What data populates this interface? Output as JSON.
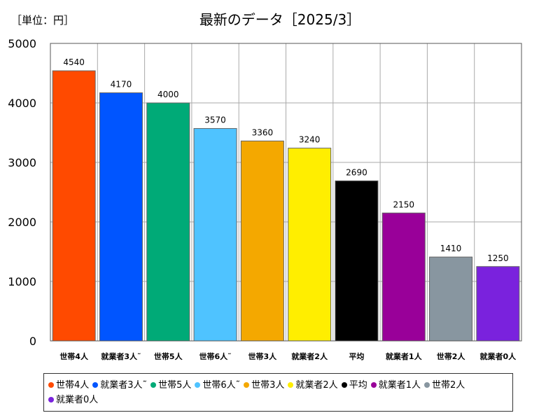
{
  "header": {
    "unit_label": "［単位：円］",
    "title": "最新のデータ［2025/3］"
  },
  "chart_data": {
    "type": "bar",
    "title": "最新のデータ［2025/3］",
    "unit": "［単位：円］",
    "ylim": [
      0,
      5000
    ],
    "yticks": [
      0,
      1000,
      2000,
      3000,
      4000,
      5000
    ],
    "grid": true,
    "legend_position": "bottom",
    "categories": [
      "世帯4人",
      "就業者3人˜",
      "世帯5人",
      "世帯6人˜",
      "世帯3人",
      "就業者2人",
      "平均",
      "就業者1人",
      "世帯2人",
      "就業者0人"
    ],
    "values": [
      4540,
      4170,
      4000,
      3570,
      3360,
      3240,
      2690,
      2150,
      1410,
      1250
    ],
    "colors": [
      "#ff4a00",
      "#0055ff",
      "#00aa77",
      "#4fc3ff",
      "#f4a800",
      "#ffee00",
      "#000000",
      "#990099",
      "#8896a0",
      "#7a22dd"
    ]
  }
}
